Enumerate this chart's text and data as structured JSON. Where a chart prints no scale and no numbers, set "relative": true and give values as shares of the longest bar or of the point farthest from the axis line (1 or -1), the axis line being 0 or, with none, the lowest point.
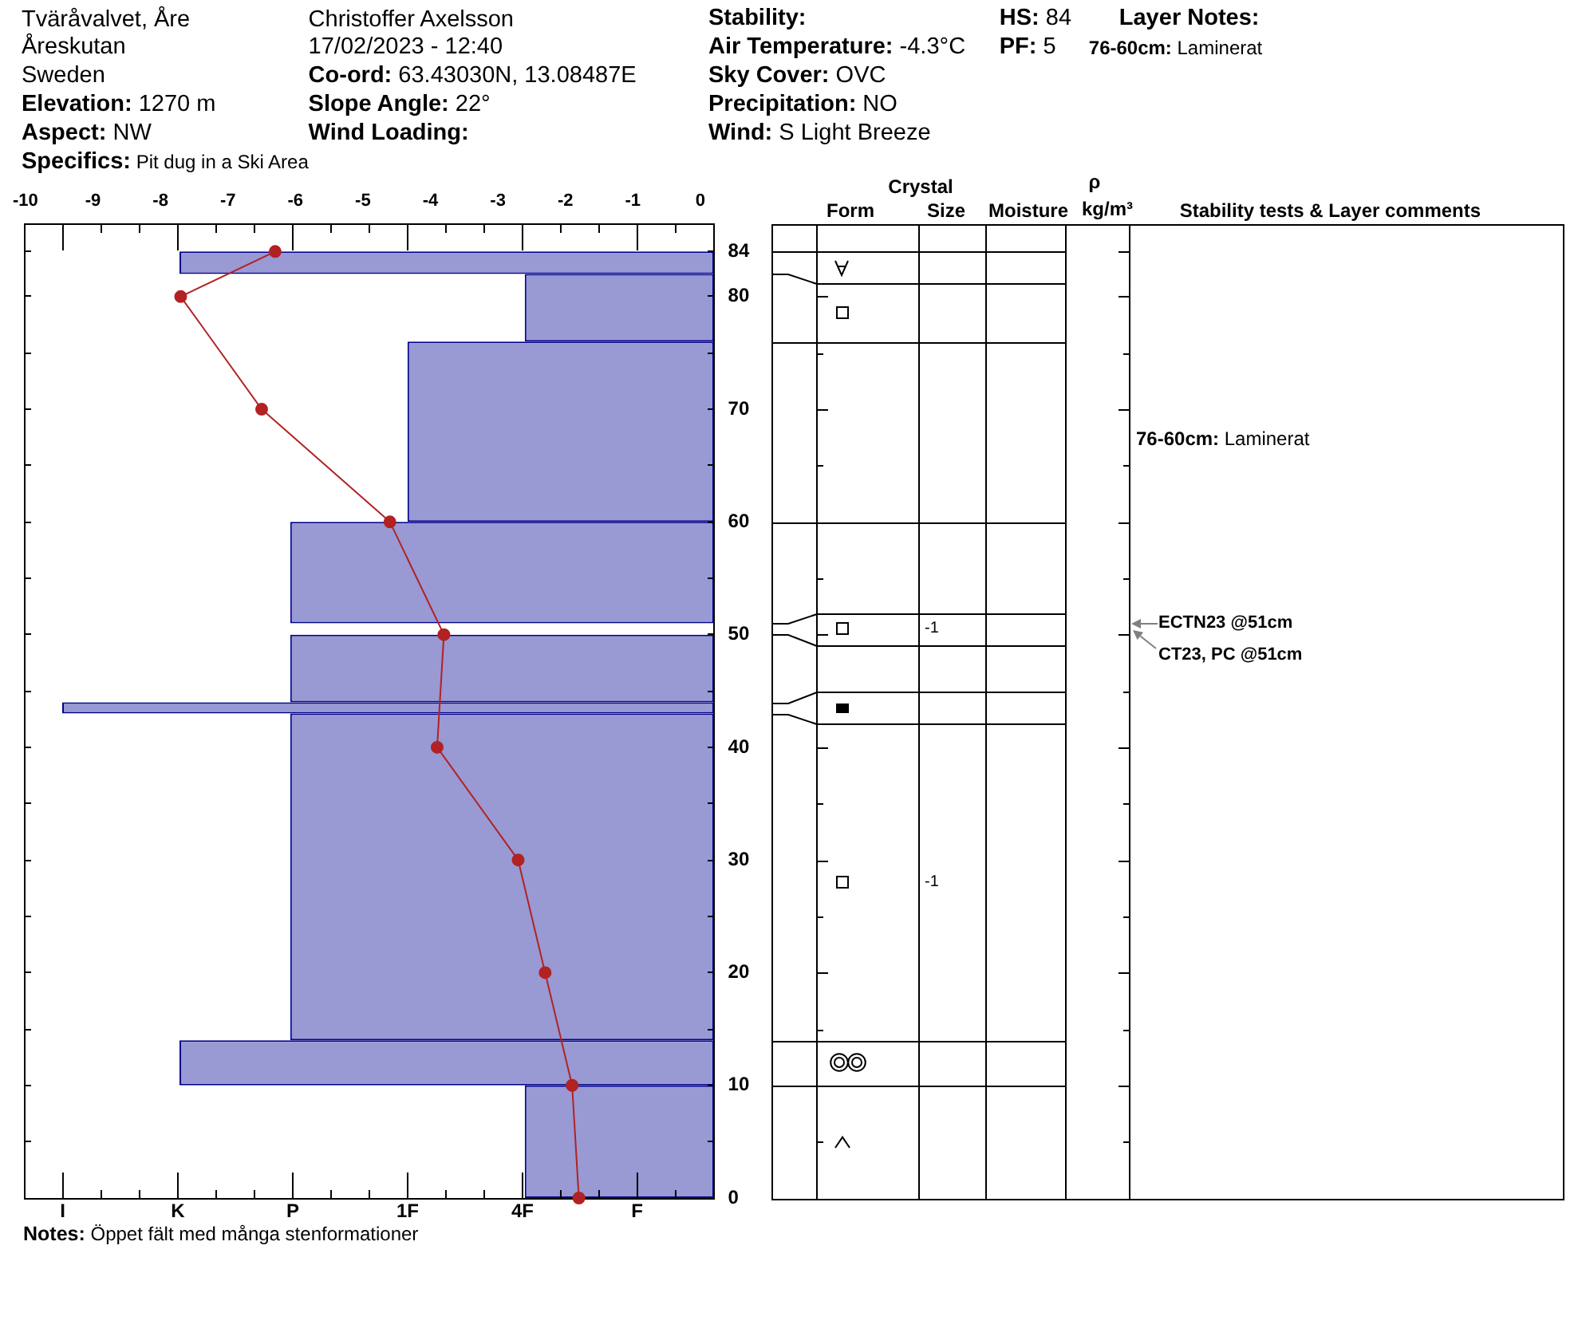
{
  "chart_data": [
    {
      "type": "bar",
      "orientation": "horizontal",
      "relative": true,
      "series": [
        {
          "x": [
            5,
            12,
            28.5,
            43.5,
            47,
            50.5,
            55.5,
            68,
            79,
            83
          ],
          "values": [
            -0.29,
            -0.82,
            -0.65,
            -1,
            -0.65,
            null,
            -0.65,
            -0.47,
            -0.29,
            -0.82
          ],
          "color": "#9999d4"
        }
      ],
      "ylim": [
        0,
        86.4
      ],
      "yticks": [
        0,
        {
          "value": 5,
          "label": null
        },
        10,
        {
          "value": 15,
          "label": null
        },
        20,
        {
          "value": 25,
          "label": null
        },
        30,
        {
          "value": 35,
          "label": null
        },
        40,
        {
          "value": 45,
          "label": null
        },
        50,
        {
          "value": 55,
          "label": null
        },
        60,
        {
          "value": 65,
          "label": null
        },
        70,
        {
          "value": 75,
          "label": null
        },
        80,
        84
      ],
      "annotations": [
        "Tväråvalvet, Åre",
        "Åreskutan",
        "Sweden",
        "Elevation: 1270 m",
        "Aspect: NW",
        "Specifics: Pit dug in a Ski Area",
        "Christoffer Axelsson",
        "17/02/2023 - 12:40",
        "Co-ord: 63.43030N, 13.08487E",
        "Slope Angle: 22°",
        "Wind Loading:",
        "Stability:",
        "Air Temperature: -4.3°C",
        "Sky Cover: OVC",
        "Precipitation: NO",
        "Wind: S Light Breeze",
        "HS: 84",
        "PF: 5",
        "Layer Notes:",
        "76-60cm: Laminerat",
        "Crystal",
        "Form",
        "Size",
        "Moisture",
        "ρ",
        "kg/m³",
        "Stability tests & Layer comments",
        "-1",
        "-1",
        "76-60cm: Laminerat",
        "ECTN23 @51cm",
        "CT23, PC @51cm",
        "I",
        "K",
        "P",
        "1F",
        "4F",
        "F",
        "Notes: Öppet fält med många stenformationer"
      ]
    },
    {
      "type": "line",
      "orientation": "horizontal",
      "series": [
        {
          "x": [
            84,
            80,
            70,
            60,
            50,
            40,
            30,
            20,
            10,
            0
          ],
          "values": [
            -6.3,
            -7.7,
            -6.5,
            -4.6,
            -3.8,
            -3.9,
            -2.7,
            -2.3,
            -1.9,
            -1.8
          ],
          "color": "#b22222"
        }
      ],
      "marker": "circle",
      "xlim": [
        -10,
        0
      ],
      "xticks": [
        -10,
        -9,
        -8,
        -7,
        -6,
        -5,
        -4,
        -3,
        -2,
        -1,
        0
      ],
      "ylim": [
        0,
        86.4
      ],
      "tick_labels": "x"
    }
  ]
}
